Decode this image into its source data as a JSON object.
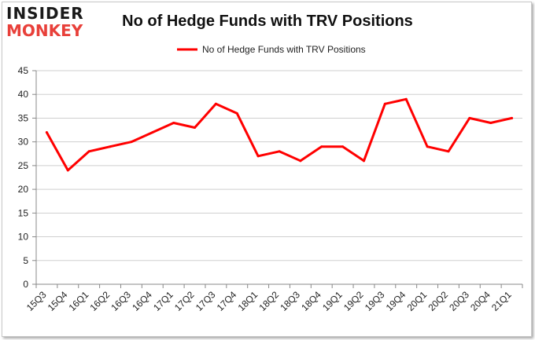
{
  "logo": {
    "top": "INSIDER",
    "bottom": "MONKEY"
  },
  "chart_data": {
    "type": "line",
    "title": "No of Hedge Funds with TRV Positions",
    "xlabel": "",
    "ylabel": "",
    "categories": [
      "15Q3",
      "15Q4",
      "16Q1",
      "16Q2",
      "16Q3",
      "16Q4",
      "17Q1",
      "17Q2",
      "17Q3",
      "17Q4",
      "18Q1",
      "18Q2",
      "18Q3",
      "18Q4",
      "19Q1",
      "19Q2",
      "19Q3",
      "19Q4",
      "20Q1",
      "20Q2",
      "20Q3",
      "20Q4",
      "21Q1"
    ],
    "series": [
      {
        "name": "No of Hedge Funds with TRV Positions",
        "color": "#ff0000",
        "values": [
          32,
          24,
          28,
          29,
          30,
          32,
          34,
          33,
          38,
          36,
          27,
          28,
          26,
          29,
          29,
          26,
          38,
          39,
          29,
          28,
          35,
          34,
          35
        ]
      }
    ],
    "ylim": [
      0,
      45
    ],
    "yticks": [
      0,
      5,
      10,
      15,
      20,
      25,
      30,
      35,
      40,
      45
    ],
    "grid": true,
    "legend": "top-center"
  }
}
